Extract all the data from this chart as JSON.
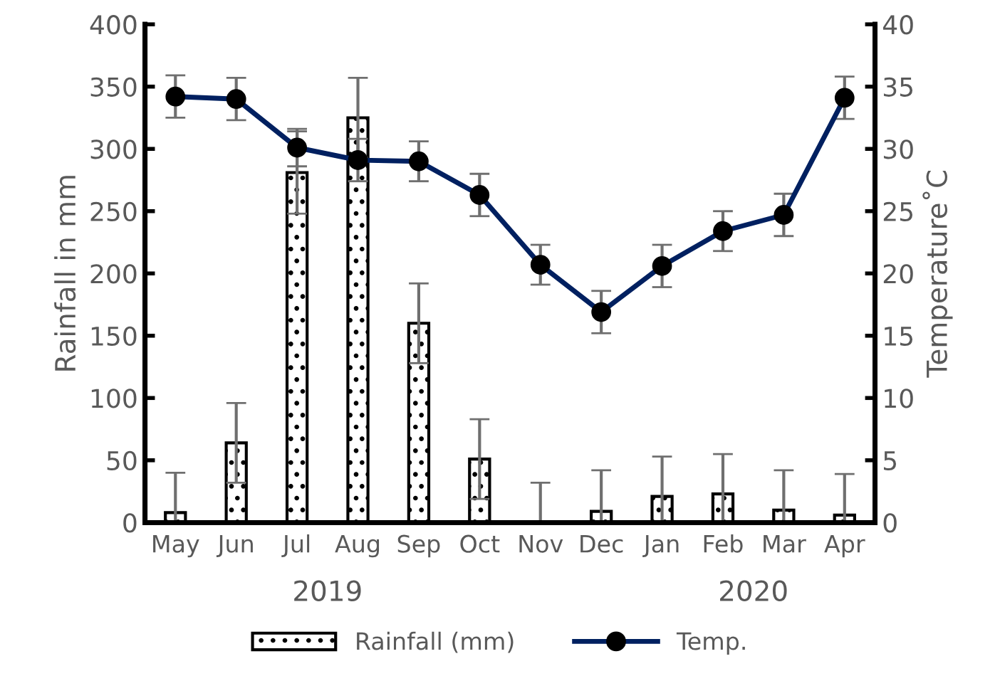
{
  "chart_data": {
    "type": "bar",
    "categories": [
      "May",
      "Jun",
      "Jul",
      "Aug",
      "Sep",
      "Oct",
      "Nov",
      "Dec",
      "Jan",
      "Feb",
      "Mar",
      "Apr"
    ],
    "series": [
      {
        "name": "Rainfall (mm)",
        "color": "#000000",
        "values": [
          8,
          64,
          281,
          325,
          160,
          51,
          0,
          9,
          21,
          23,
          10,
          6
        ],
        "errors": [
          32,
          32,
          33,
          32,
          32,
          32,
          32,
          33,
          32,
          32,
          32,
          33
        ]
      },
      {
        "name": "Temp.",
        "type": "line",
        "axis": "y2",
        "color": "#002060",
        "marker": "circle",
        "line_style": "solid",
        "values": [
          34.2,
          34.0,
          30.1,
          29.1,
          29.0,
          26.3,
          20.7,
          16.9,
          20.6,
          23.4,
          24.7,
          34.1
        ],
        "errors": [
          1.7,
          1.7,
          1.5,
          1.7,
          1.6,
          1.7,
          1.6,
          1.7,
          1.7,
          1.6,
          1.7,
          1.7
        ]
      }
    ],
    "ylabel": "Rainfall in mm",
    "y2label": "Temperature˚C",
    "ylim": [
      0,
      400
    ],
    "yticks": [
      0,
      50,
      100,
      150,
      200,
      250,
      300,
      350,
      400
    ],
    "y2lim": [
      0,
      40
    ],
    "y2ticks": [
      0,
      5,
      10,
      15,
      20,
      25,
      30,
      35,
      40
    ],
    "annotations": [
      "2019",
      "2020"
    ],
    "grid": false,
    "legend": "bottom"
  }
}
